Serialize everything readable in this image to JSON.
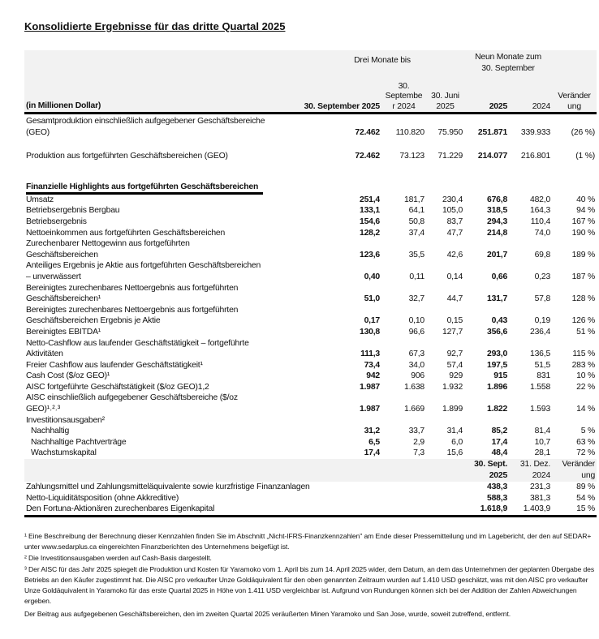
{
  "title": "Konsolidierte Ergebnisse für das dritte Quartal 2025",
  "header": {
    "three_months": "Drei Monate bis",
    "nine_months": "Neun Monate zum\n30. September",
    "unit": "(in Millionen Dollar)",
    "cols": [
      "30. September 2025",
      "30.\nSeptembe\nr 2024",
      "30. Juni\n2025",
      "2025",
      "2024",
      "Veränder\nung"
    ]
  },
  "production_rows": [
    {
      "label": "Gesamtproduktion einschließlich aufgegebener Geschäftsbereiche\n(GEO)",
      "values": [
        "72.462",
        "110.820",
        "75.950",
        "251.871",
        "339.933",
        "(26 %)"
      ]
    },
    {
      "label": "Produktion aus fortgeführten Geschäftsbereichen (GEO)",
      "values": [
        "72.462",
        "73.123",
        "71.229",
        "214.077",
        "216.801",
        "(1 %)"
      ]
    }
  ],
  "section_title": "Finanzielle Highlights aus fortgeführten Geschäftsbereichen",
  "rows": [
    {
      "label": "Umsatz",
      "values": [
        "251,4",
        "181,7",
        "230,4",
        "676,8",
        "482,0",
        "40 %"
      ]
    },
    {
      "label": "Betriebsergebnis Bergbau",
      "values": [
        "133,1",
        "64,1",
        "105,0",
        "318,5",
        "164,3",
        "94 %"
      ]
    },
    {
      "label": "Betriebsergebnis",
      "values": [
        "154,6",
        "50,8",
        "83,7",
        "294,3",
        "110,4",
        "167 %"
      ]
    },
    {
      "label": "Nettoeinkommen aus fortgeführten Geschäftsbereichen",
      "values": [
        "128,2",
        "37,4",
        "47,7",
        "214,8",
        "74,0",
        "190 %"
      ]
    },
    {
      "label": "Zurechenbarer Nettogewinn aus fortgeführten\nGeschäftsbereichen",
      "values": [
        "123,6",
        "35,5",
        "42,6",
        "201,7",
        "69,8",
        "189 %"
      ]
    },
    {
      "label": "Anteiliges Ergebnis je Aktie aus fortgeführten Geschäftsbereichen\n– unverwässert",
      "values": [
        "0,40",
        "0,11",
        "0,14",
        "0,66",
        "0,23",
        "187 %"
      ]
    },
    {
      "label": "Bereinigtes zurechenbares Nettoergebnis aus fortgeführten\nGeschäftsbereichen¹",
      "values": [
        "51,0",
        "32,7",
        "44,7",
        "131,7",
        "57,8",
        "128 %"
      ]
    },
    {
      "label": "Bereinigtes zurechenbares Nettoergebnis aus fortgeführten\nGeschäftsbereichen Ergebnis je Aktie",
      "values": [
        "0,17",
        "0,10",
        "0,15",
        "0,43",
        "0,19",
        "126 %"
      ]
    },
    {
      "label": "Bereinigtes EBITDA¹",
      "values": [
        "130,8",
        "96,6",
        "127,7",
        "356,6",
        "236,4",
        "51 %"
      ]
    },
    {
      "label": "Netto-Cashflow aus laufender Geschäftstätigkeit – fortgeführte\nAktivitäten",
      "values": [
        "111,3",
        "67,3",
        "92,7",
        "293,0",
        "136,5",
        "115 %"
      ]
    },
    {
      "label": "Freier Cashflow aus laufender Geschäftstätigkeit¹",
      "values": [
        "73,4",
        "34,0",
        "57,4",
        "197,5",
        "51,5",
        "283 %"
      ]
    },
    {
      "label": "Cash Cost ($/oz GEO)¹",
      "values": [
        "942",
        "906",
        "929",
        "915",
        "831",
        "10 %"
      ]
    },
    {
      "label": "AISC  fortgeführte Geschäftstätigkeit ($/oz GEO)1,2",
      "values": [
        "1.987",
        "1.638",
        "1.932",
        "1.896",
        "1.558",
        "22 %"
      ]
    },
    {
      "label": "AISC einschließlich  aufgegebener Geschäftsbereiche ($/oz\nGEO)¹˒²˒³",
      "values": [
        "1.987",
        "1.669",
        "1.899",
        "1.822",
        "1.593",
        "14 %"
      ]
    },
    {
      "label": "Investitionsausgaben²",
      "values": [
        "",
        "",
        "",
        "",
        "",
        ""
      ]
    },
    {
      "label": "Nachhaltig",
      "indent": true,
      "values": [
        "31,2",
        "33,7",
        "31,4",
        "85,2",
        "81,4",
        "5 %"
      ]
    },
    {
      "label": "Nachhaltige Pachtverträge",
      "indent": true,
      "values": [
        "6,5",
        "2,9",
        "6,0",
        "17,4",
        "10,7",
        "63 %"
      ]
    },
    {
      "label": "Wachstumskapital",
      "indent": true,
      "values": [
        "17,4",
        "7,3",
        "15,6",
        "48,4",
        "28,1",
        "72 %"
      ]
    }
  ],
  "balance_header": [
    "30. Sept.\n2025",
    "31. Dez.\n2024",
    "Veränder\nung"
  ],
  "balance_rows": [
    {
      "label": "Zahlungsmittel und Zahlungsmitteläquivalente sowie kurzfristige Finanzanlagen",
      "values": [
        "438,3",
        "231,3",
        "89 %"
      ]
    },
    {
      "label": "Netto-Liquiditätsposition (ohne Akkreditive)",
      "values": [
        "588,3",
        "381,3",
        "54 %"
      ]
    },
    {
      "label": "Den Fortuna-Aktionären zurechenbares Eigenkapital",
      "values": [
        "1.618,9",
        "1.403,9",
        "15 %"
      ]
    }
  ],
  "footnotes": [
    "¹ Eine Beschreibung der Berechnung dieser Kennzahlen finden Sie im Abschnitt „Nicht-IFRS-Finanzkennzahlen\" am Ende dieser Pressemitteilung und im Lagebericht, der den auf SEDAR+ unter www.sedarplus.ca eingereichten Finanzberichten des Unternehmens beigefügt ist.",
    "² Die Investitionsausgaben werden auf Cash-Basis dargestellt.",
    "³  Der AISC für das Jahr 2025 spiegelt die Produktion und Kosten für Yaramoko vom 1. April bis zum 14. April 2025 wider, dem Datum, an dem das Unternehmen der geplanten Übergabe des Betriebs an den Käufer zugestimmt hat. Die AISC pro verkaufter Unze Goldäquivalent für den oben genannten Zeitraum wurden auf 1.410 USD geschätzt, was mit den AISC pro verkaufter Unze Goldäquivalent in Yaramoko für das erste Quartal 2025 in Höhe von 1.411 USD vergleichbar ist. Aufgrund von Rundungen können sich bei der Addition der Zahlen Abweichungen ergeben.",
    "Der Beitrag aus aufgegebenen Geschäftsbereichen, den im zweiten Quartal 2025 veräußerten Minen Yaramoko und San Jose, wurde, soweit zutreffend, entfernt."
  ]
}
